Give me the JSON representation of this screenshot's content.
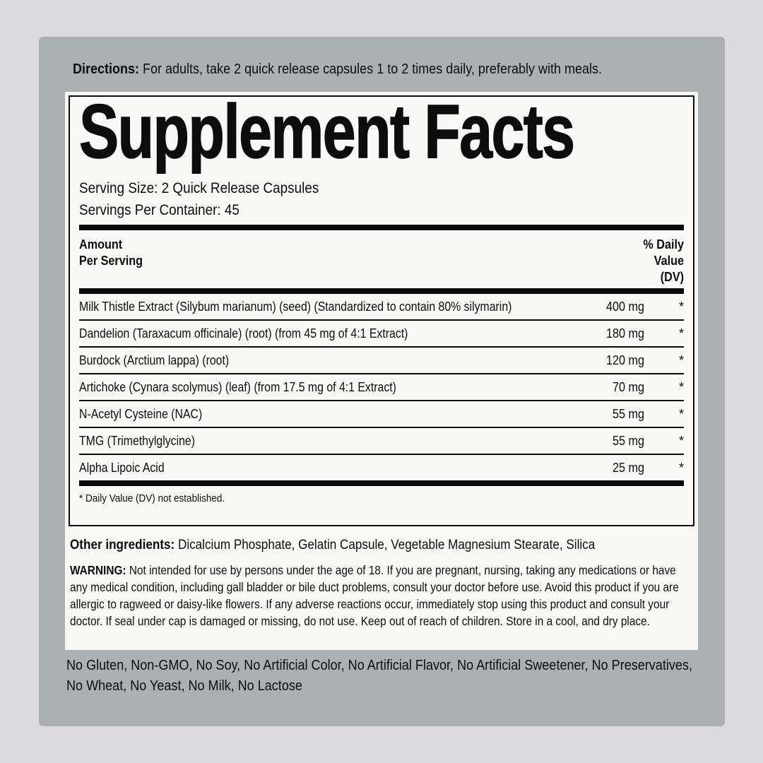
{
  "directions": {
    "label": "Directions:",
    "text": " For adults, take 2 quick release capsules 1 to 2 times daily, preferably with meals."
  },
  "facts": {
    "title": "Supplement Facts",
    "serving_size": "Serving Size: 2 Quick Release Capsules",
    "servings_per_container": "Servings Per Container: 45",
    "columns": {
      "amount": "Amount\nPer Serving",
      "dv": "% Daily\nValue\n(DV)"
    },
    "rows": [
      {
        "name": "Milk Thistle Extract (Silybum marianum) (seed) (Standardized to contain 80% silymarin)",
        "amount": "400 mg",
        "dv": "*"
      },
      {
        "name": "Dandelion (Taraxacum officinale) (root) (from 45 mg of 4:1 Extract)",
        "amount": "180 mg",
        "dv": "*"
      },
      {
        "name": "Burdock (Arctium lappa) (root)",
        "amount": "120 mg",
        "dv": "*"
      },
      {
        "name": "Artichoke (Cynara scolymus) (leaf) (from 17.5 mg of 4:1 Extract)",
        "amount": "70 mg",
        "dv": "*"
      },
      {
        "name": "N-Acetyl Cysteine (NAC)",
        "amount": "55 mg",
        "dv": "*"
      },
      {
        "name": "TMG (Trimethylglycine)",
        "amount": "55 mg",
        "dv": "*"
      },
      {
        "name": "Alpha Lipoic Acid",
        "amount": "25 mg",
        "dv": "*"
      }
    ],
    "footnote": "* Daily Value (DV) not established."
  },
  "other_ingredients": {
    "label": "Other ingredients:",
    "text": " Dicalcium Phosphate, Gelatin Capsule, Vegetable Magnesium Stearate, Silica"
  },
  "warning": {
    "label": "WARNING:",
    "text": " Not intended for use by persons under the age of 18. If you are pregnant, nursing, taking any medications or have any medical condition, including gall bladder or bile duct problems, consult your doctor before use. Avoid this product if you are allergic to ragweed or daisy-like flowers. If any adverse reactions occur, immediately stop using this product and consult your doctor. If seal under cap is damaged or missing, do not use. Keep out of reach of children. Store in a cool, and dry place."
  },
  "claims": {
    "text": "No Gluten, Non-GMO, No Soy, No Artificial Color, No Artificial Flavor, No Artificial Sweetener, No Preservatives, No Wheat, No Yeast, No Milk, No Lactose"
  },
  "colors": {
    "background_outer": "#dbdadd",
    "background_panel": "#abb0b3",
    "label_background": "#f8f8f6",
    "ink": "#0b0b0b"
  }
}
